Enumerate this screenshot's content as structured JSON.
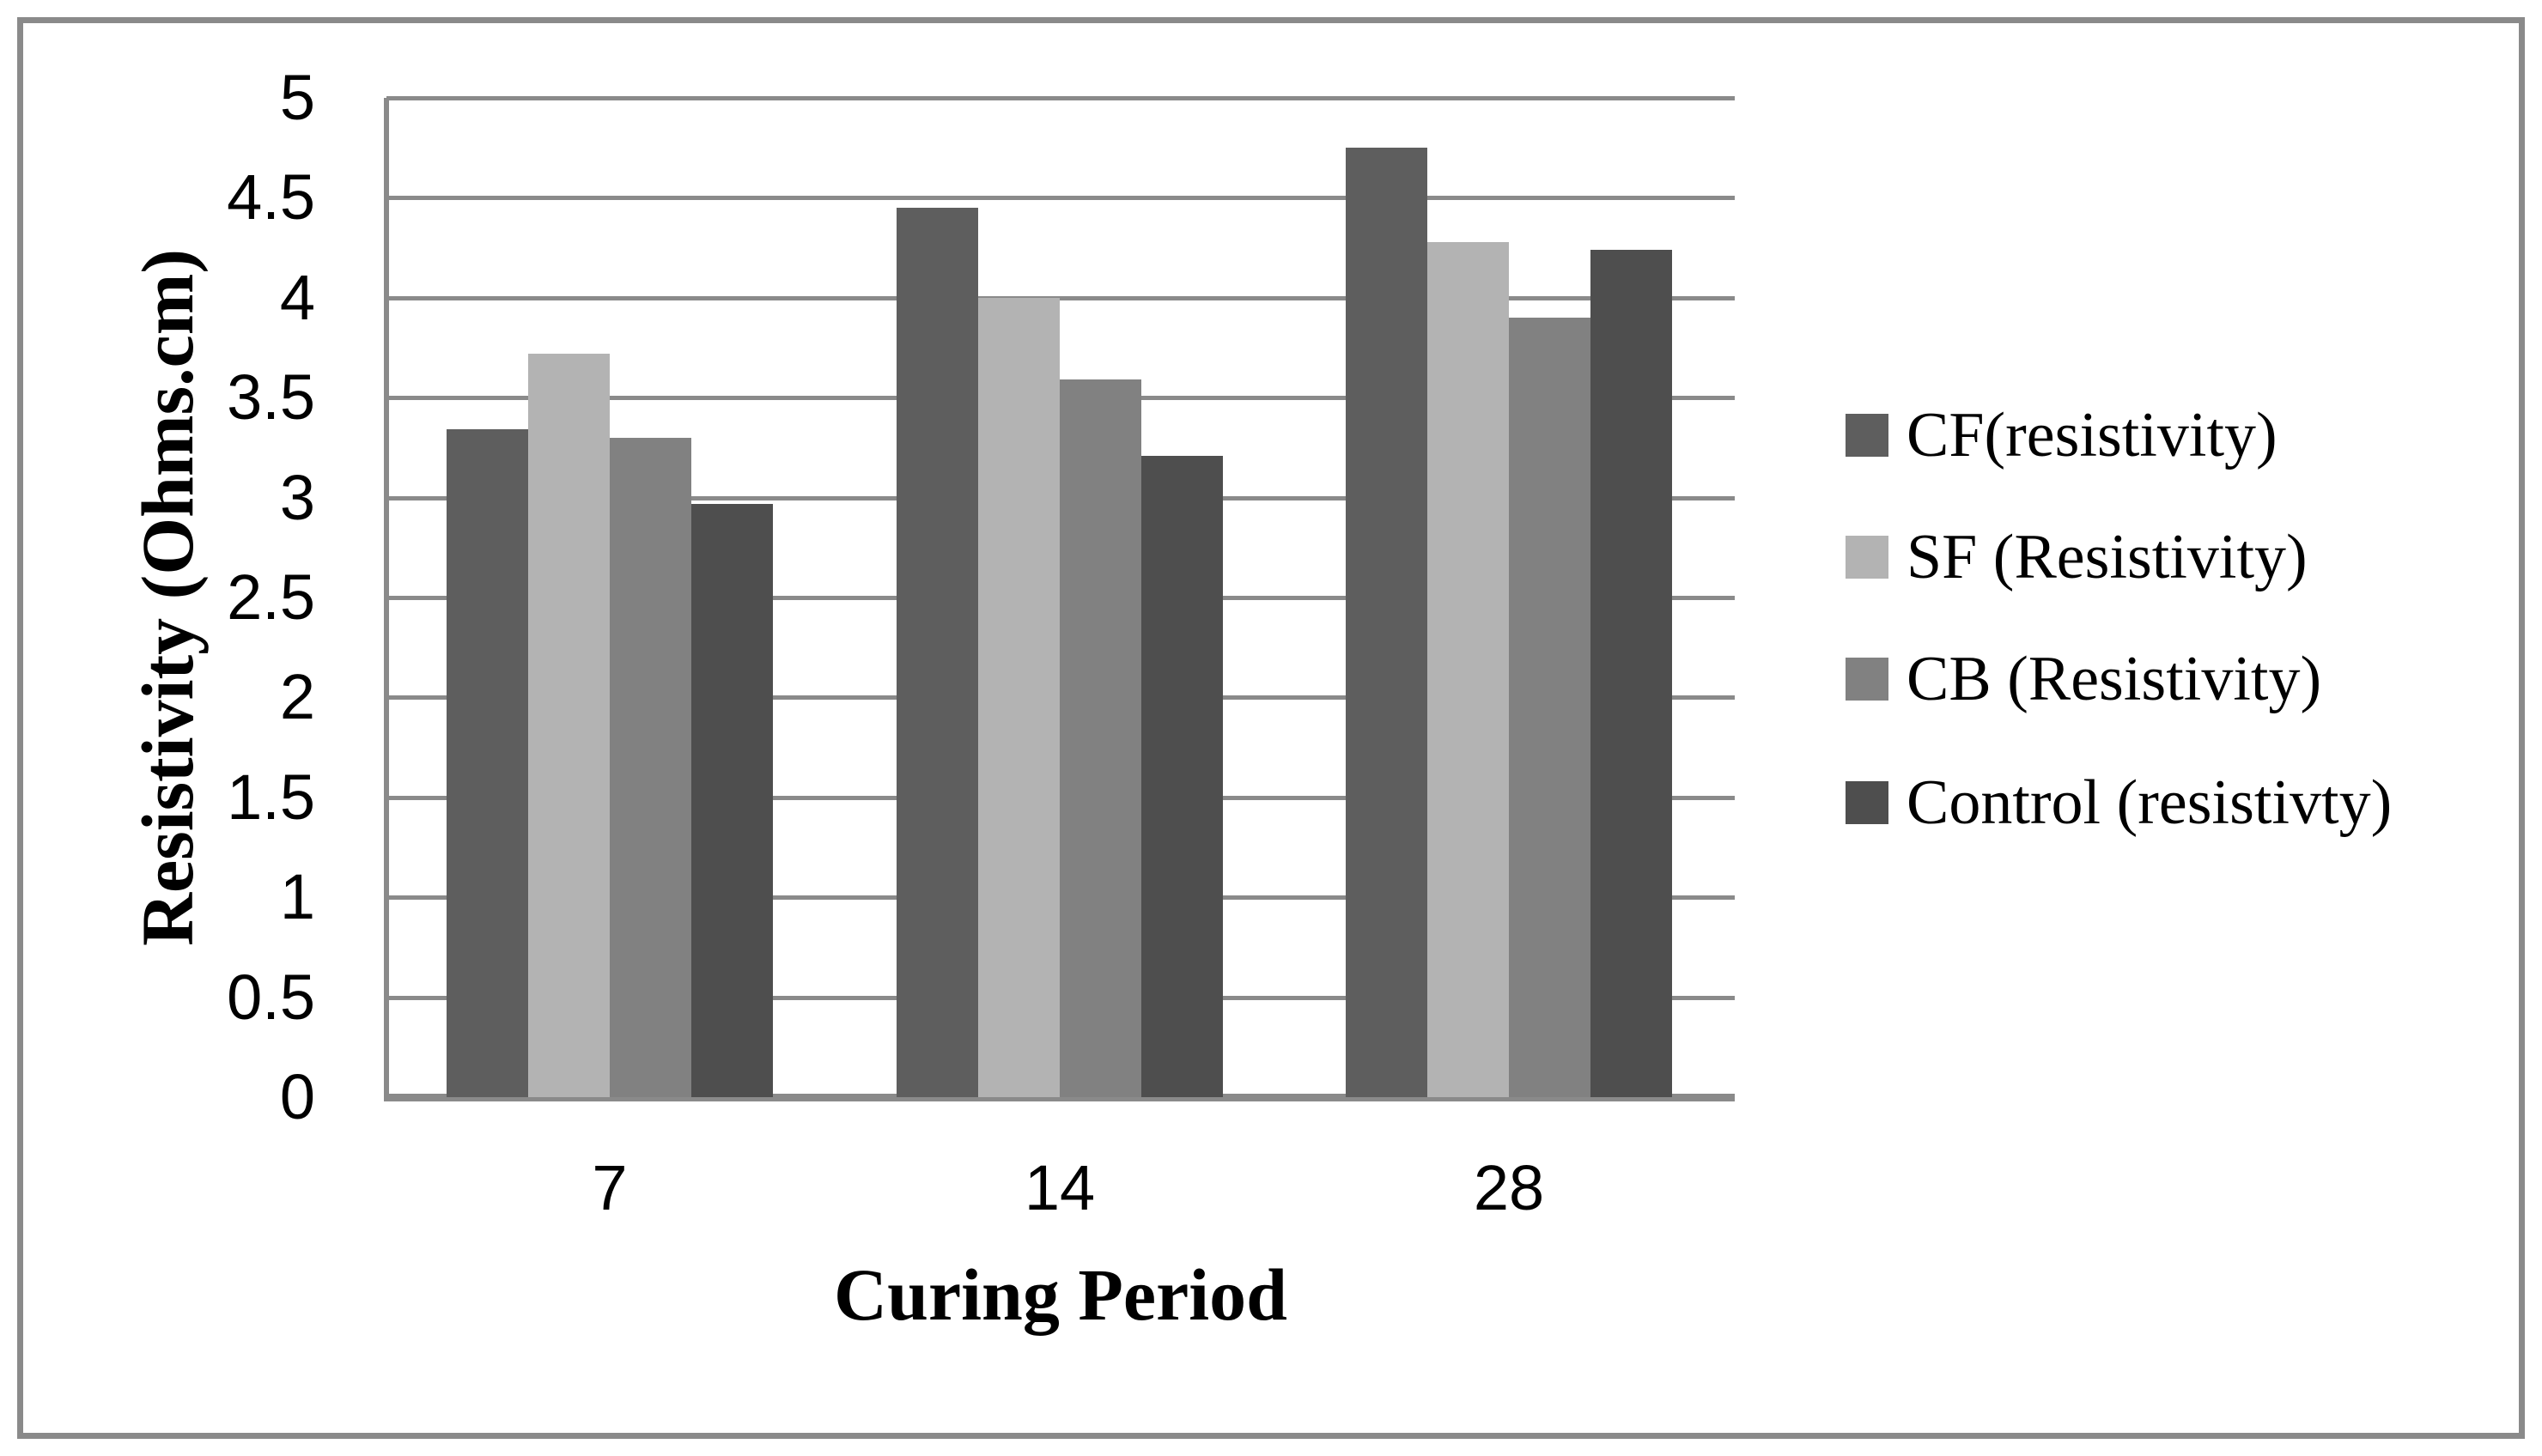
{
  "figure": {
    "background": "#ffffff",
    "border_color": "#8a8a8a"
  },
  "chart_data": {
    "type": "bar",
    "title": "",
    "xlabel": "Curing Period",
    "ylabel": "Resistivity (Ohms.cm)",
    "categories": [
      "7",
      "14",
      "28"
    ],
    "series": [
      {
        "name": "CF(resistivity)",
        "color": "#5e5e5e",
        "values": [
          3.34,
          4.45,
          4.75
        ]
      },
      {
        "name": "SF (Resistivity)",
        "color": "#b3b3b3",
        "values": [
          3.72,
          4.0,
          4.28
        ]
      },
      {
        "name": "CB (Resistivity)",
        "color": "#818181",
        "values": [
          3.3,
          3.59,
          3.9
        ]
      },
      {
        "name": "Control (resistivty)",
        "color": "#4e4e4e",
        "values": [
          2.97,
          3.21,
          4.24
        ]
      }
    ],
    "ylim": [
      0,
      5
    ],
    "ytick_step": 0.5,
    "yticks": [
      {
        "value": 0,
        "label": "0"
      },
      {
        "value": 0.5,
        "label": "0.5"
      },
      {
        "value": 1,
        "label": "1"
      },
      {
        "value": 1.5,
        "label": "1.5"
      },
      {
        "value": 2,
        "label": "2"
      },
      {
        "value": 2.5,
        "label": "2.5"
      },
      {
        "value": 3,
        "label": "3"
      },
      {
        "value": 3.5,
        "label": "3.5"
      },
      {
        "value": 4,
        "label": "4"
      },
      {
        "value": 4.5,
        "label": "4.5"
      },
      {
        "value": 5,
        "label": "5"
      }
    ],
    "grid": true,
    "grid_color": "#8a8a8a",
    "axis_color": "#8a8a8a",
    "legend_position": "right"
  }
}
